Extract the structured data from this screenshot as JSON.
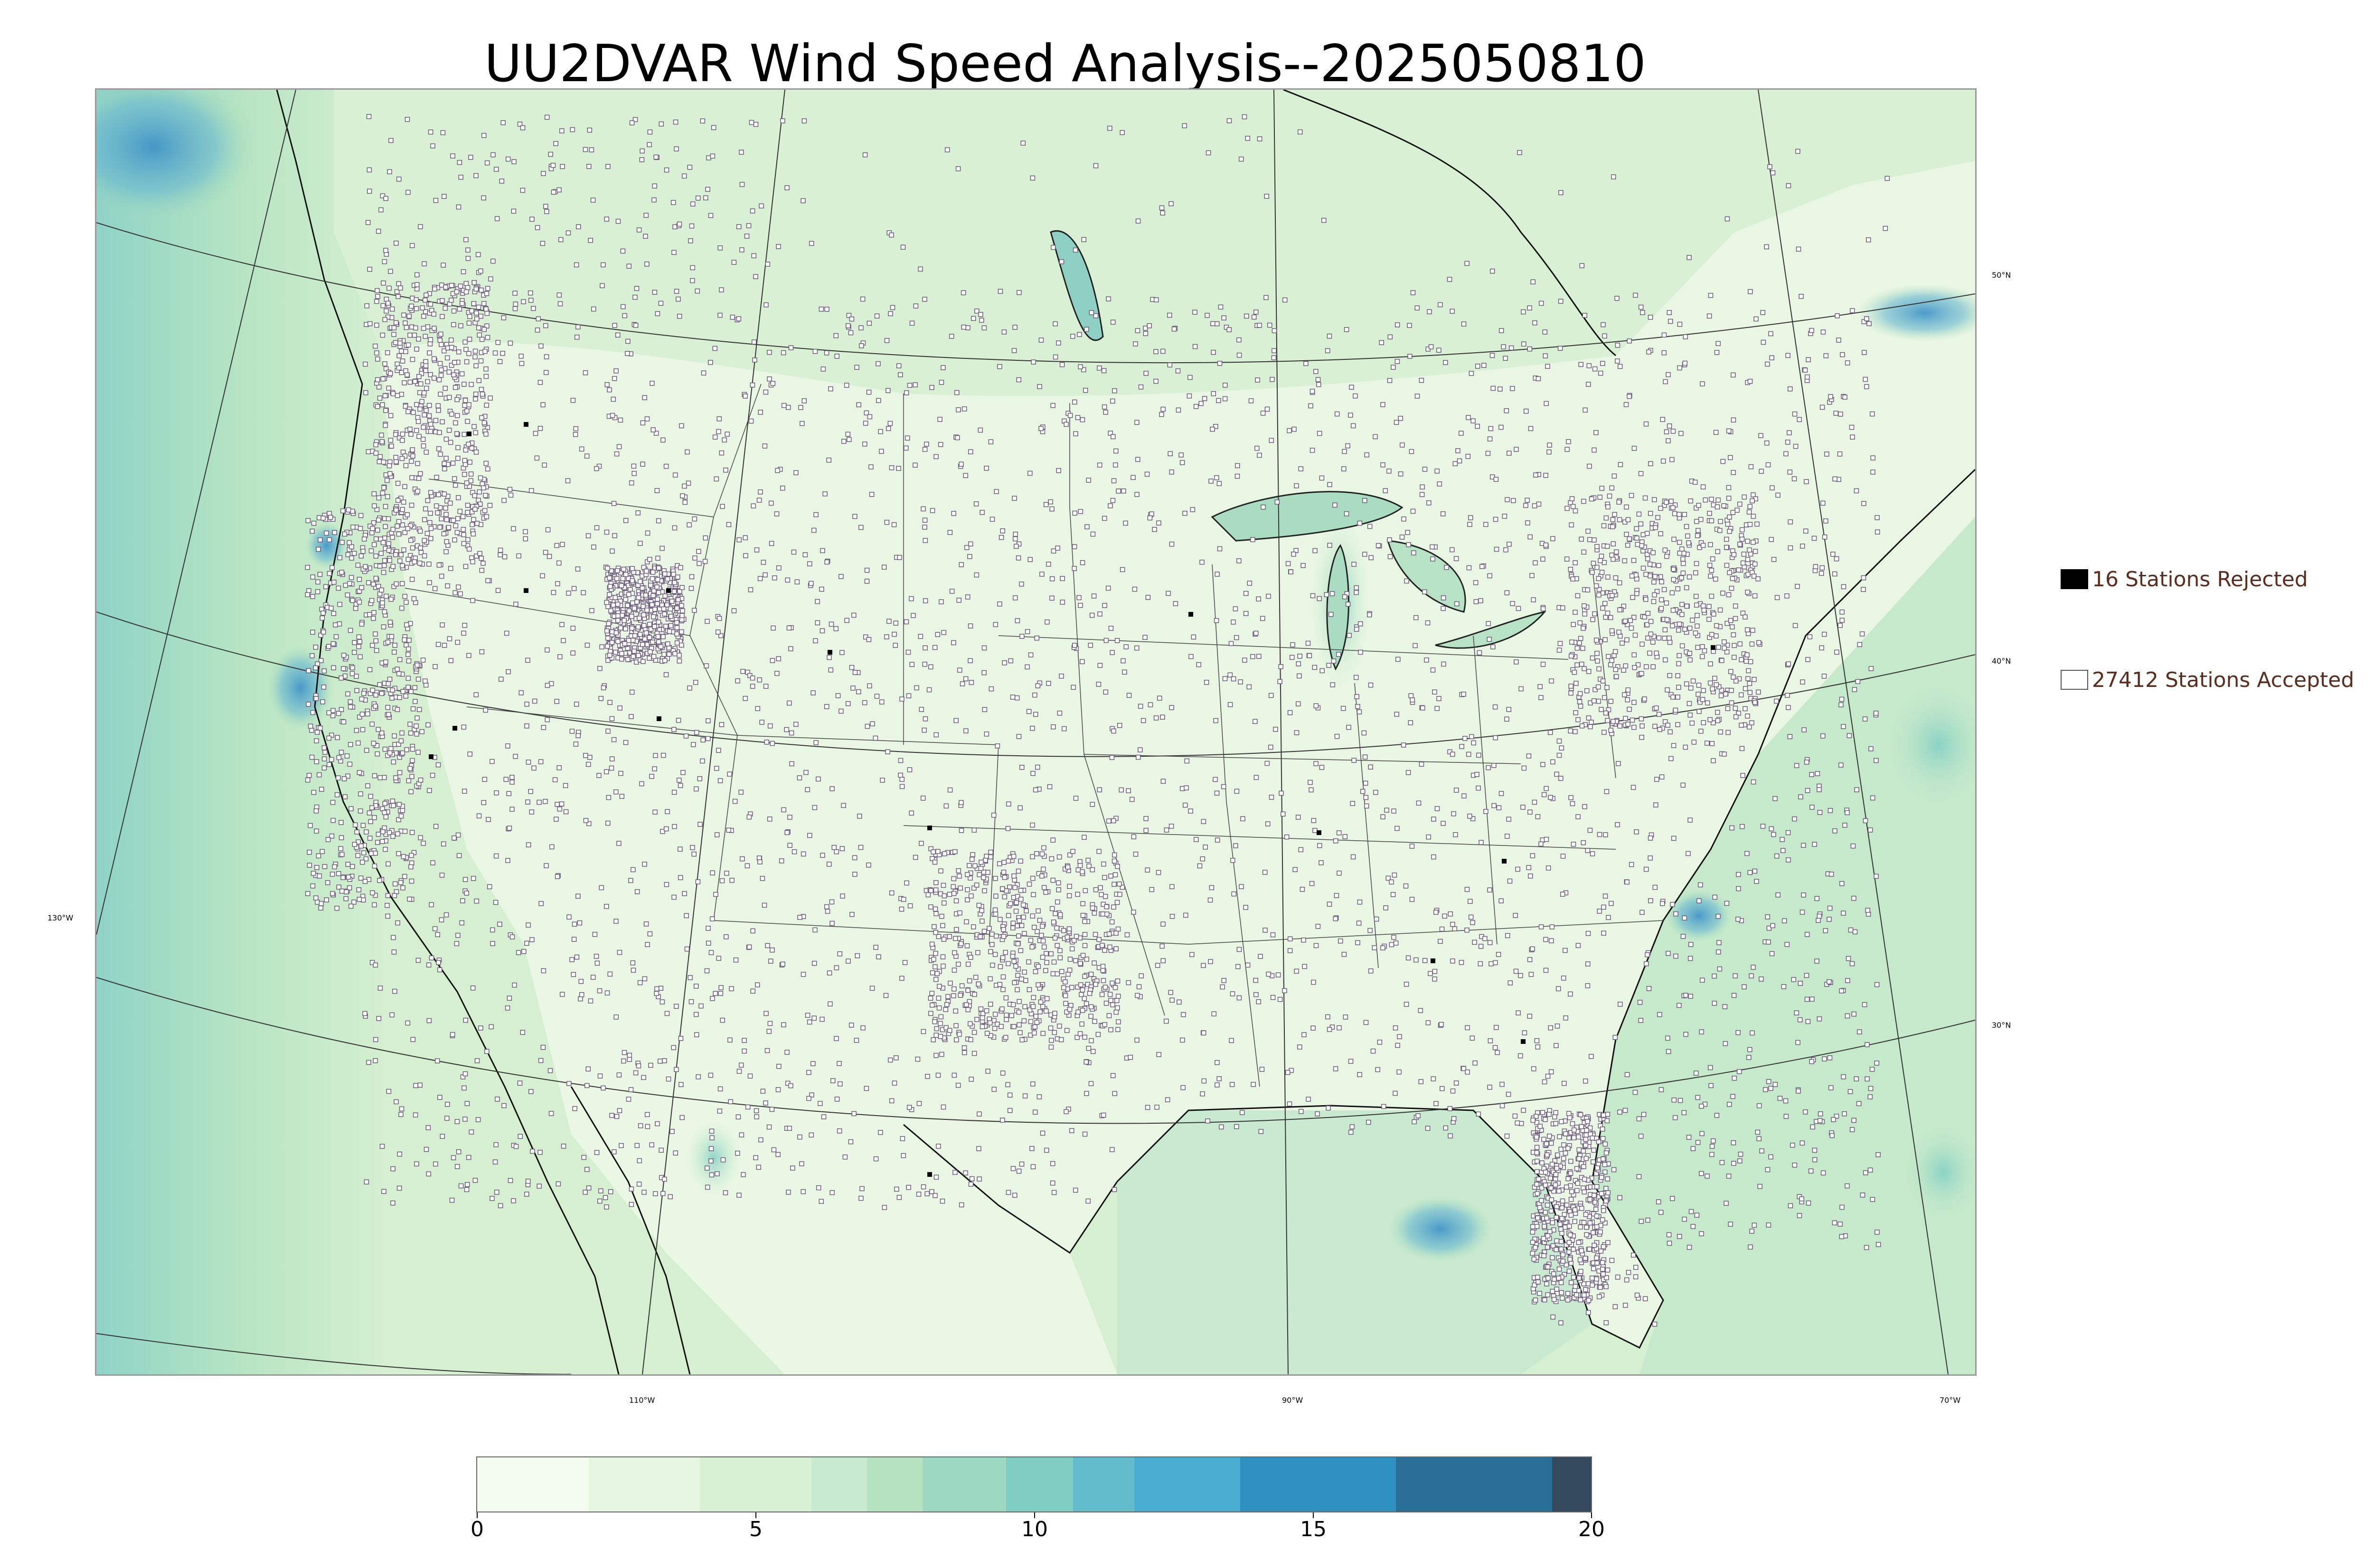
{
  "title": "UU2DVAR Wind Speed Analysis--2025050810",
  "map": {
    "variable": "wind speed",
    "colormap": [
      "#f7fcf0",
      "#e0f3db",
      "#ccebc5",
      "#a8ddb5",
      "#7bccc4",
      "#4eb3d3",
      "#2b8cbe",
      "#0868ac",
      "#084081"
    ],
    "lat_labels": [
      "50°N",
      "40°N",
      "30°N"
    ],
    "lon_labels": [
      "130°W",
      "110°W",
      "90°W",
      "70°W"
    ]
  },
  "legend": {
    "rejected": {
      "count_label": "16 Stations Rejected",
      "marker": "filled-black-square"
    },
    "accepted": {
      "count_label": "27412 Stations Accepted",
      "marker": "open-square"
    }
  },
  "colorbar": {
    "min": 0,
    "max": 20,
    "ticks": [
      "0",
      "5",
      "10",
      "15",
      "20"
    ],
    "segment_colors": [
      "#f4fbef",
      "#e7f6e1",
      "#d8f0d3",
      "#c8ead0",
      "#b5e2c0",
      "#9dd9c1",
      "#80cdc1",
      "#63bccb",
      "#4aaed2",
      "#2f8fbf",
      "#2a6f97",
      "#34495e"
    ],
    "segment_bounds": [
      0,
      2,
      4,
      6,
      7,
      8,
      9.5,
      10.7,
      11.8,
      13.7,
      16.5,
      19.3,
      20
    ]
  }
}
